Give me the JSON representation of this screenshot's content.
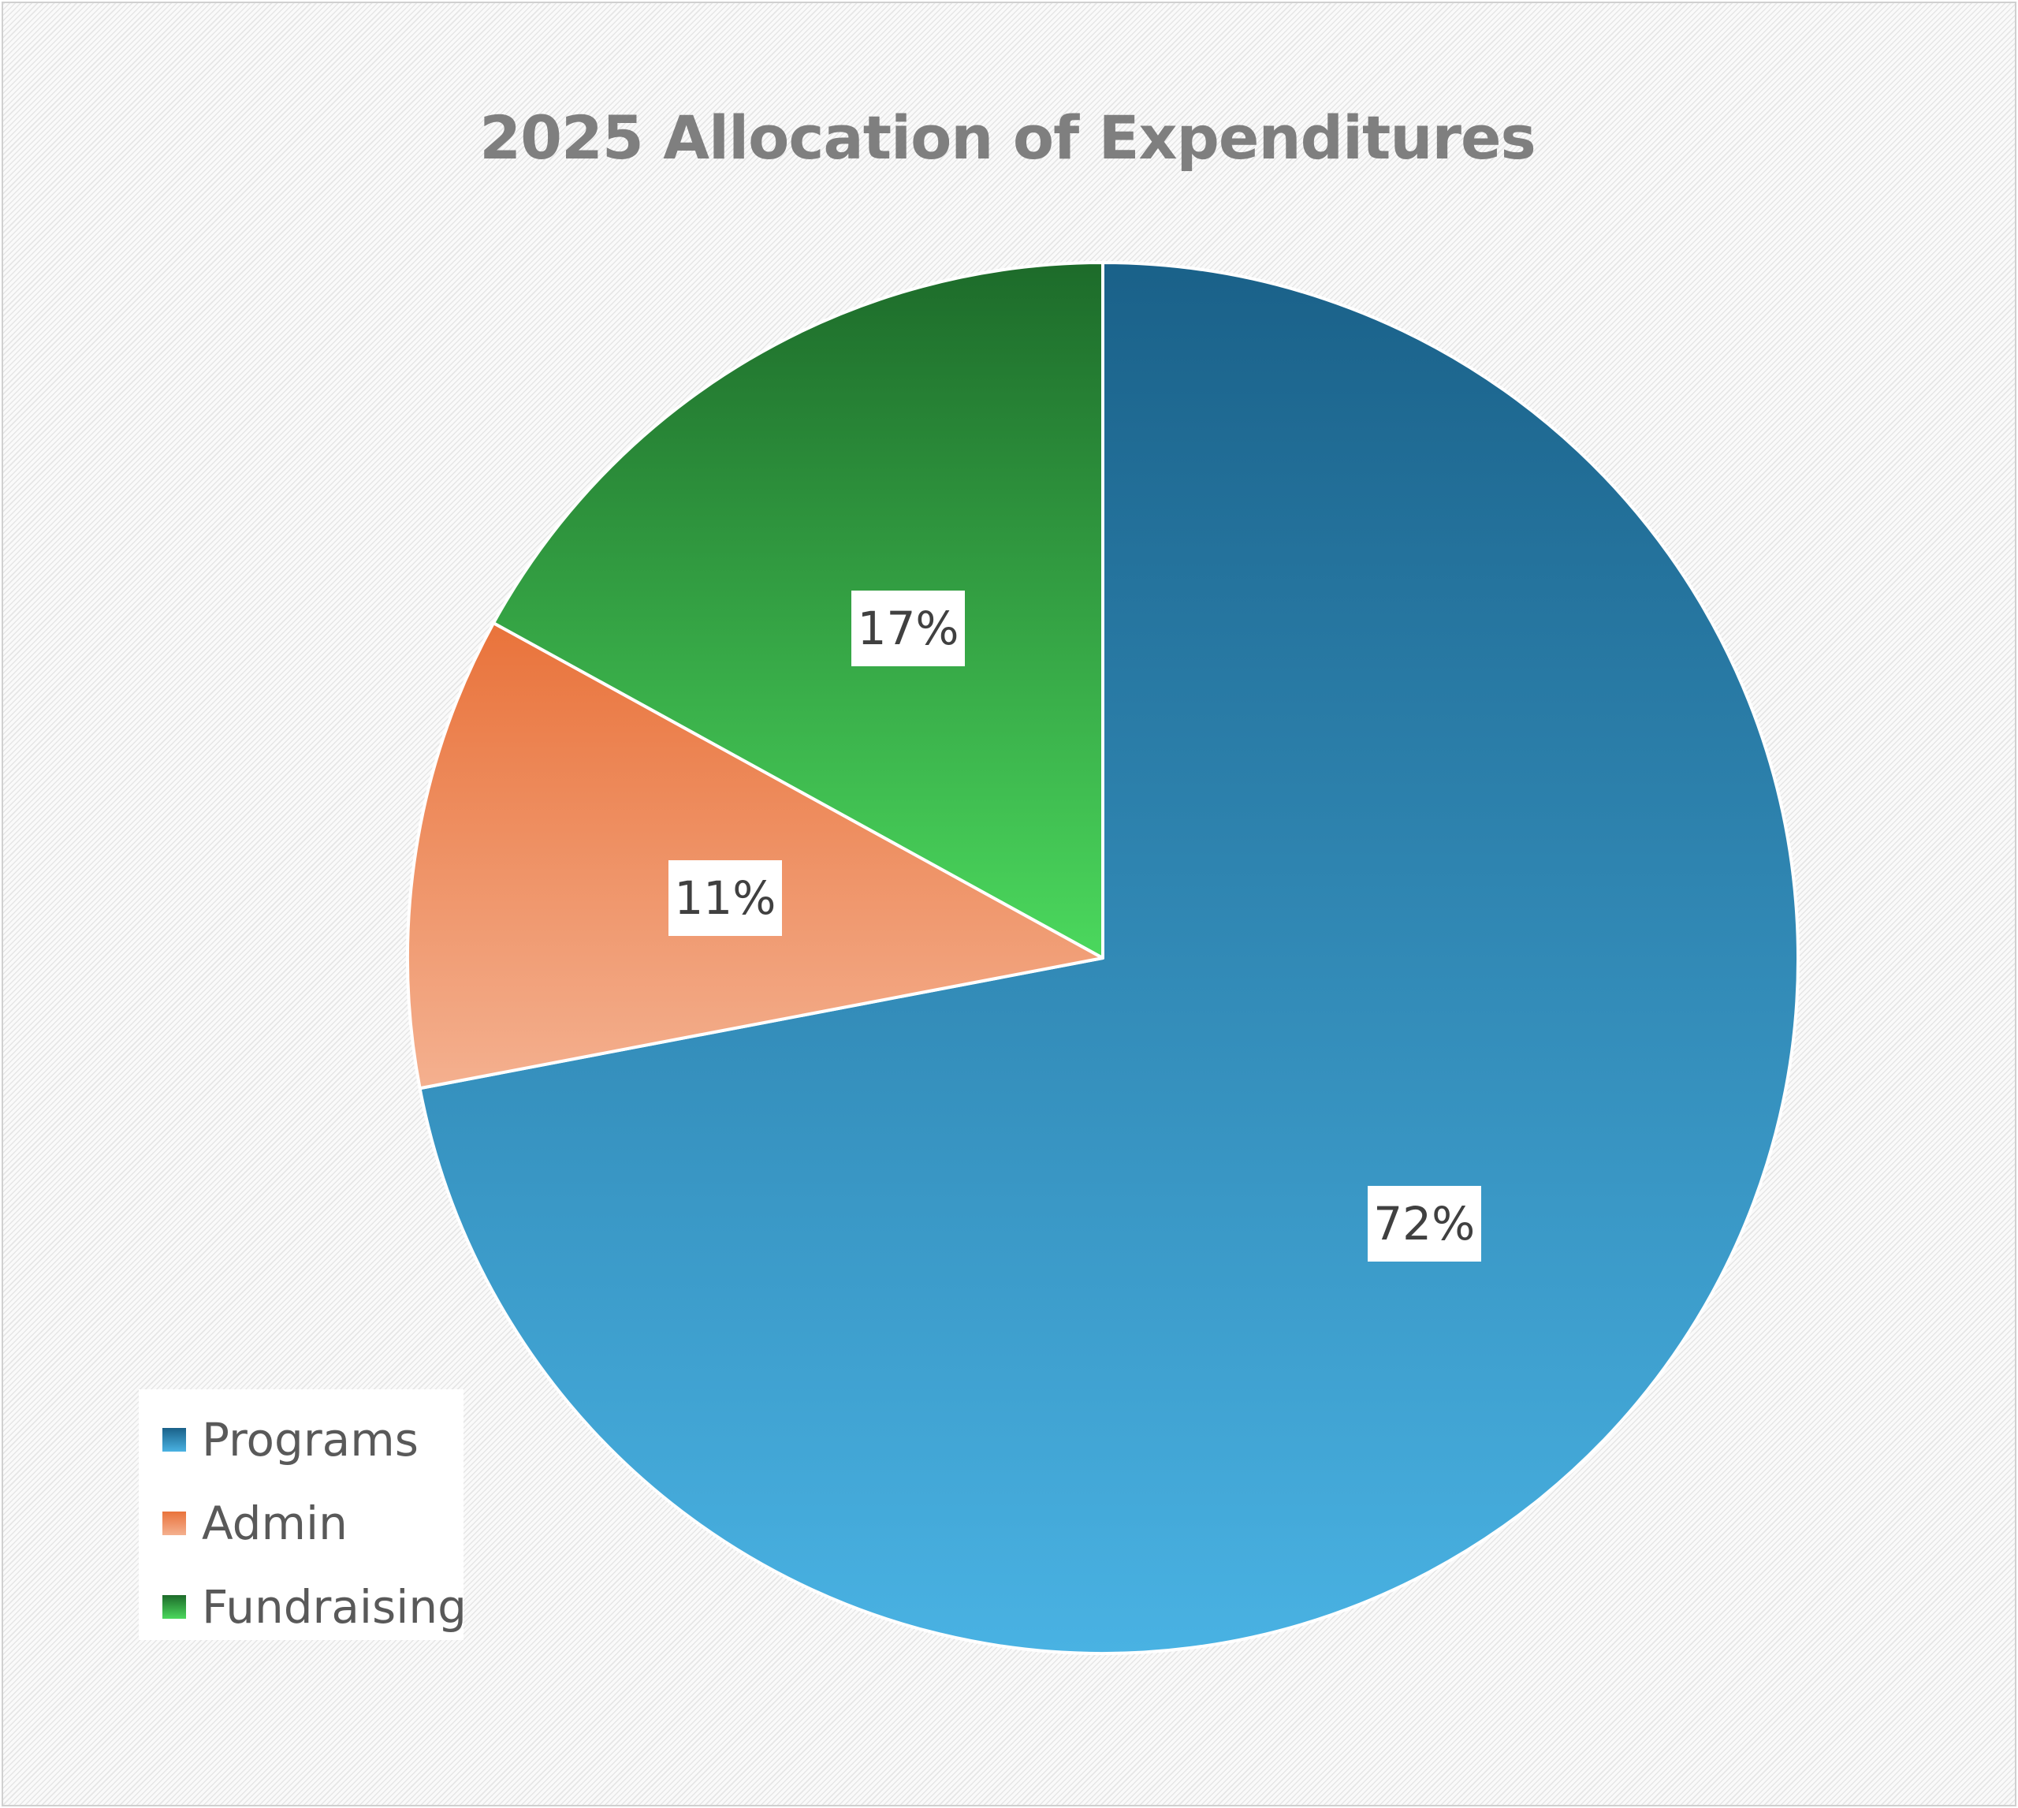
{
  "chart_data": {
    "type": "pie",
    "title": "2025 Allocation of Expenditures",
    "categories": [
      "Programs",
      "Admin",
      "Fundraising"
    ],
    "values": [
      72,
      11,
      17
    ],
    "data_labels": [
      "72%",
      "11%",
      "17%"
    ],
    "unit": "%",
    "legend_position": "bottom-left",
    "colors": {
      "Programs": [
        "#1a6189",
        "#49b2e3"
      ],
      "Admin": [
        "#e9733b",
        "#f4b08f"
      ],
      "Fundraising": [
        "#1d6b2a",
        "#4bd85d"
      ]
    }
  }
}
